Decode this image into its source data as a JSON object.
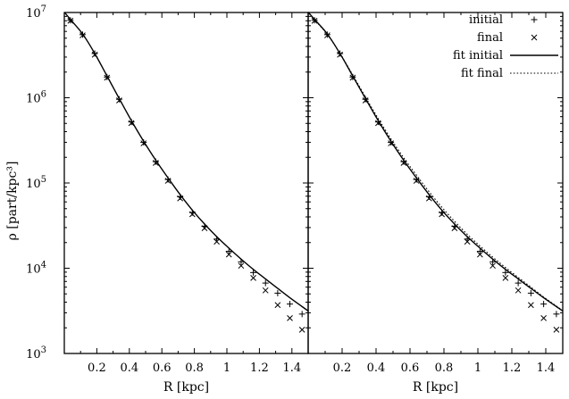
{
  "chart_data": [
    {
      "type": "scatter",
      "panel": "left",
      "xlabel": "R [kpc]",
      "ylabel": "ρ [part/kpc³]",
      "y_scale": "log",
      "xlim": [
        0,
        1.5
      ],
      "ylim": [
        1000,
        10000000
      ],
      "x_ticks": [
        "0.2",
        "0.4",
        "0.6",
        "0.8",
        "1",
        "1.2",
        "1.4"
      ],
      "y_ticks": [
        {
          "base": "10",
          "exp": "3",
          "value": 1000
        },
        {
          "base": "10",
          "exp": "4",
          "value": 10000
        },
        {
          "base": "10",
          "exp": "5",
          "value": 100000
        },
        {
          "base": "10",
          "exp": "6",
          "value": 1000000
        },
        {
          "base": "10",
          "exp": "7",
          "value": 10000000
        }
      ],
      "x": [
        0.0375,
        0.1125,
        0.1875,
        0.2625,
        0.3375,
        0.4125,
        0.4875,
        0.5625,
        0.6375,
        0.7125,
        0.7875,
        0.8625,
        0.9375,
        1.0125,
        1.0875,
        1.1625,
        1.2375,
        1.3125,
        1.3875,
        1.4625
      ],
      "series": [
        {
          "name": "initial",
          "marker": "plus",
          "y": [
            8100000,
            5500000,
            3300000,
            1750000,
            960000,
            520000,
            300000,
            178000,
            110000,
            69000,
            45000,
            31000,
            22000,
            15800,
            11900,
            8900,
            6700,
            5100,
            3800,
            2900
          ]
        },
        {
          "name": "final",
          "marker": "cross",
          "y": [
            8000000,
            5400000,
            3200000,
            1720000,
            930000,
            505000,
            292000,
            172000,
            106000,
            66000,
            43000,
            29500,
            20500,
            14500,
            10700,
            7700,
            5500,
            3700,
            2600,
            1900
          ]
        },
        {
          "name": "fit initial",
          "style": "solid",
          "y": [
            8300000,
            5600000,
            3300000,
            1800000,
            980000,
            540000,
            310000,
            185000,
            115000,
            73000,
            48000,
            33000,
            23500,
            17200,
            12800,
            9700,
            7500,
            5800,
            4500,
            3550
          ]
        }
      ]
    },
    {
      "type": "scatter",
      "panel": "right",
      "xlabel": "R [kpc]",
      "y_scale": "log",
      "xlim": [
        0,
        1.5
      ],
      "ylim": [
        1000,
        10000000
      ],
      "x_ticks": [
        "0.2",
        "0.4",
        "0.6",
        "0.8",
        "1",
        "1.2",
        "1.4"
      ],
      "x": [
        0.0375,
        0.1125,
        0.1875,
        0.2625,
        0.3375,
        0.4125,
        0.4875,
        0.5625,
        0.6375,
        0.7125,
        0.7875,
        0.8625,
        0.9375,
        1.0125,
        1.0875,
        1.1625,
        1.2375,
        1.3125,
        1.3875,
        1.4625
      ],
      "series": [
        {
          "name": "initial",
          "marker": "plus",
          "y": [
            8100000,
            5500000,
            3300000,
            1750000,
            960000,
            520000,
            300000,
            178000,
            110000,
            69000,
            45000,
            31000,
            22000,
            15800,
            11900,
            8900,
            6700,
            5100,
            3800,
            2900
          ]
        },
        {
          "name": "final",
          "marker": "cross",
          "y": [
            8000000,
            5400000,
            3200000,
            1720000,
            930000,
            505000,
            292000,
            172000,
            106000,
            66000,
            43000,
            29500,
            20500,
            14500,
            10700,
            7700,
            5500,
            3700,
            2600,
            1900
          ]
        },
        {
          "name": "fit initial",
          "style": "solid",
          "y": [
            8300000,
            5600000,
            3300000,
            1800000,
            980000,
            540000,
            310000,
            185000,
            115000,
            73000,
            48000,
            33000,
            23500,
            17200,
            12800,
            9700,
            7500,
            5800,
            4500,
            3550
          ]
        },
        {
          "name": "fit final",
          "style": "dotted",
          "y": [
            8200000,
            5550000,
            3300000,
            1850000,
            1020000,
            570000,
            330000,
            198000,
            124000,
            79000,
            52000,
            35500,
            25000,
            18200,
            13500,
            10200,
            7800,
            6000,
            4600,
            3600
          ]
        }
      ],
      "legend": {
        "placement": "top-right",
        "entries": [
          "initial",
          "final",
          "fit initial",
          "fit final"
        ]
      }
    }
  ]
}
